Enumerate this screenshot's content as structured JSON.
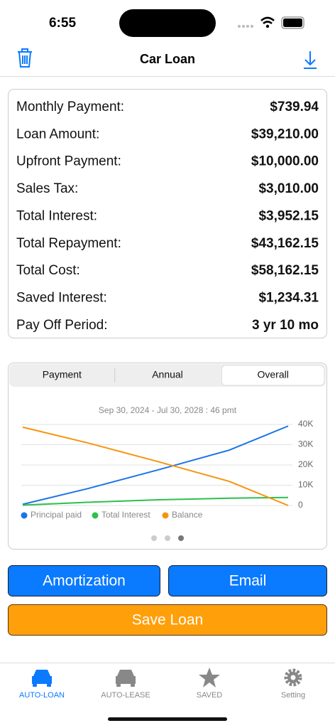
{
  "status_bar": {
    "time": "6:55"
  },
  "header": {
    "title": "Car Loan"
  },
  "summary": {
    "rows": [
      [
        "Monthly Payment:",
        "$739.94"
      ],
      [
        "Loan Amount:",
        "$39,210.00"
      ],
      [
        "Upfront Payment:",
        "$10,000.00"
      ],
      [
        "Sales Tax:",
        "$3,010.00"
      ],
      [
        "Total Interest:",
        "$3,952.15"
      ],
      [
        "Total Repayment:",
        "$43,162.15"
      ],
      [
        "Total Cost:",
        "$58,162.15"
      ],
      [
        "Saved Interest:",
        "$1,234.31"
      ],
      [
        "Pay Off Period:",
        "3 yr 10 mo"
      ]
    ]
  },
  "segmented": {
    "options": [
      "Payment",
      "Annual",
      "Overall"
    ],
    "selected": 2
  },
  "chart_data": {
    "type": "line",
    "subtitle": "Sep 30, 2024 - Jul 30, 2028 : 46 pmt",
    "x": [
      1,
      12,
      24,
      36,
      46
    ],
    "xlim": [
      1,
      46
    ],
    "ylim": [
      0,
      40000
    ],
    "yticks": [
      {
        "value": 0,
        "label": "0"
      },
      {
        "value": 10000,
        "label": "10K"
      },
      {
        "value": 20000,
        "label": "20K"
      },
      {
        "value": 30000,
        "label": "30K"
      },
      {
        "value": 40000,
        "label": "40K"
      }
    ],
    "grid": true,
    "series": [
      {
        "name": "Principal paid",
        "color": "#1a73e8",
        "values": [
          580,
          8310,
          17610,
          27310,
          39210
        ]
      },
      {
        "name": "Total Interest",
        "color": "#2dbf4e",
        "values": [
          160,
          1580,
          2800,
          3600,
          3952
        ]
      },
      {
        "name": "Balance",
        "color": "#f7940d",
        "values": [
          38630,
          30900,
          21600,
          11900,
          0
        ]
      }
    ]
  },
  "buttons": {
    "amortization": "Amortization",
    "email": "Email",
    "save": "Save Loan"
  },
  "tabs": [
    "AUTO-LOAN",
    "AUTO-LEASE",
    "SAVED",
    "Setting"
  ]
}
